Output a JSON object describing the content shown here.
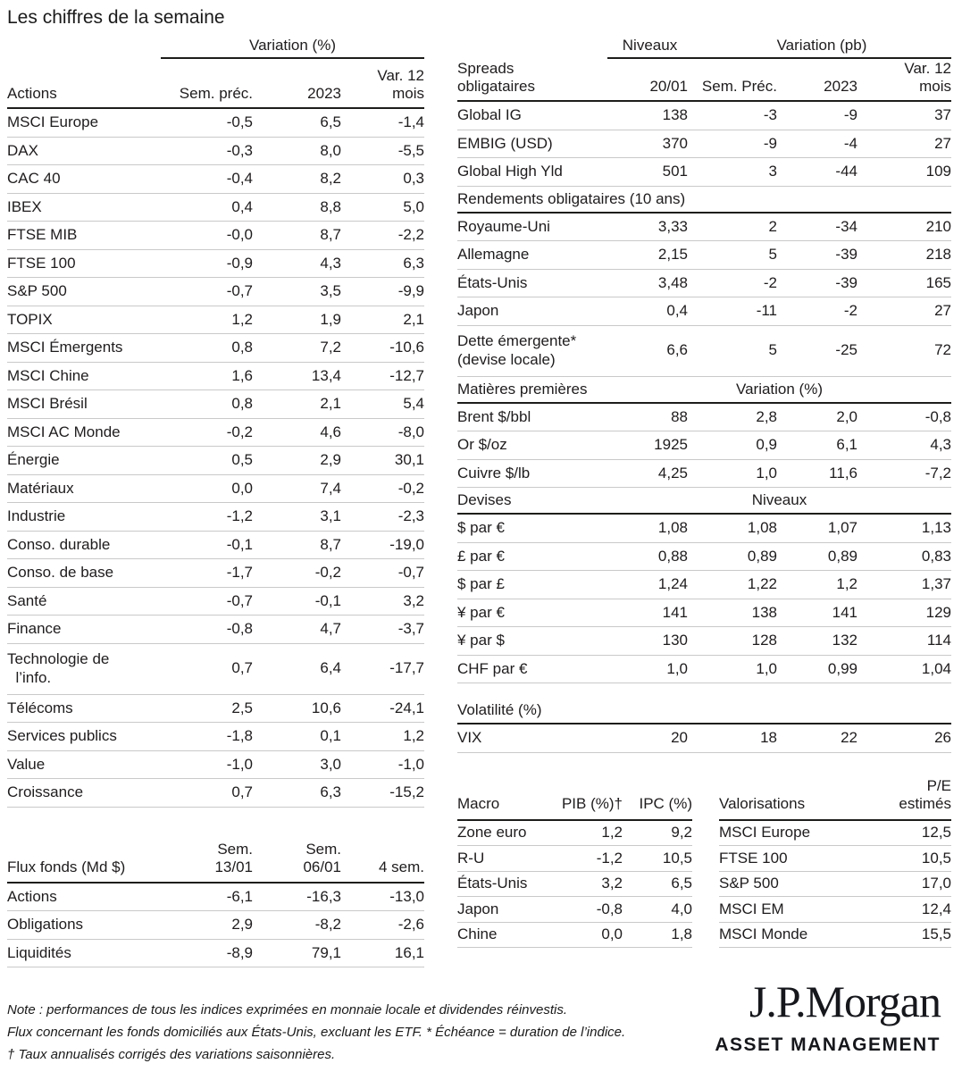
{
  "page": {
    "title": "Les chiffres de la semaine"
  },
  "actions_table": {
    "group_header": "Variation (%)",
    "col_headers": {
      "label": "Actions",
      "c1": "Sem. préc.",
      "c2": "2023",
      "c3": "Var. 12\nmois"
    },
    "rows": [
      {
        "label": "MSCI Europe",
        "c1": "-0,5",
        "c2": "6,5",
        "c3": "-1,4"
      },
      {
        "label": "DAX",
        "c1": "-0,3",
        "c2": "8,0",
        "c3": "-5,5"
      },
      {
        "label": "CAC 40",
        "c1": "-0,4",
        "c2": "8,2",
        "c3": "0,3"
      },
      {
        "label": "IBEX",
        "c1": "0,4",
        "c2": "8,8",
        "c3": "5,0"
      },
      {
        "label": "FTSE MIB",
        "c1": "-0,0",
        "c2": "8,7",
        "c3": "-2,2"
      },
      {
        "label": "FTSE 100",
        "c1": "-0,9",
        "c2": "4,3",
        "c3": "6,3"
      },
      {
        "label": "S&P 500",
        "c1": "-0,7",
        "c2": "3,5",
        "c3": "-9,9"
      },
      {
        "label": "TOPIX",
        "c1": "1,2",
        "c2": "1,9",
        "c3": "2,1"
      },
      {
        "label": "MSCI Émergents",
        "c1": "0,8",
        "c2": "7,2",
        "c3": "-10,6"
      },
      {
        "label": "MSCI Chine",
        "c1": "1,6",
        "c2": "13,4",
        "c3": "-12,7"
      },
      {
        "label": "MSCI Brésil",
        "c1": "0,8",
        "c2": "2,1",
        "c3": "5,4"
      },
      {
        "label": "MSCI AC Monde",
        "c1": "-0,2",
        "c2": "4,6",
        "c3": "-8,0"
      },
      {
        "label": "Énergie",
        "c1": "0,5",
        "c2": "2,9",
        "c3": "30,1"
      },
      {
        "label": "Matériaux",
        "c1": "0,0",
        "c2": "7,4",
        "c3": "-0,2"
      },
      {
        "label": "Industrie",
        "c1": "-1,2",
        "c2": "3,1",
        "c3": "-2,3"
      },
      {
        "label": "Conso. durable",
        "c1": "-0,1",
        "c2": "8,7",
        "c3": "-19,0"
      },
      {
        "label": "Conso. de base",
        "c1": "-1,7",
        "c2": "-0,2",
        "c3": "-0,7"
      },
      {
        "label": "Santé",
        "c1": "-0,7",
        "c2": "-0,1",
        "c3": "3,2"
      },
      {
        "label": "Finance",
        "c1": "-0,8",
        "c2": "4,7",
        "c3": "-3,7"
      },
      {
        "label": "Technologie de\n  l’info.",
        "c1": "0,7",
        "c2": "6,4",
        "c3": "-17,7",
        "row_class": "tall"
      },
      {
        "label": "Télécoms",
        "c1": "2,5",
        "c2": "10,6",
        "c3": "-24,1"
      },
      {
        "label": "Services publics",
        "c1": "-1,8",
        "c2": "0,1",
        "c3": "1,2"
      },
      {
        "label": "Value",
        "c1": "-1,0",
        "c2": "3,0",
        "c3": "-1,0"
      },
      {
        "label": "Croissance",
        "c1": "0,7",
        "c2": "6,3",
        "c3": "-15,2"
      }
    ]
  },
  "flux_table": {
    "col_headers": {
      "label": "Flux fonds (Md $)",
      "c1": "Sem.\n13/01",
      "c2": "Sem.\n06/01",
      "c3": "4 sem."
    },
    "rows": [
      {
        "label": "Actions",
        "c1": "-6,1",
        "c2": "-16,3",
        "c3": "-13,0"
      },
      {
        "label": "Obligations",
        "c1": "2,9",
        "c2": "-8,2",
        "c3": "-2,6"
      },
      {
        "label": "Liquidités",
        "c1": "-8,9",
        "c2": "79,1",
        "c3": "16,1"
      }
    ]
  },
  "notes": {
    "line1": "Note : performances de tous les indices exprimées en monnaie locale et dividendes réinvestis.",
    "line2": "Flux concernant les fonds domiciliés aux États-Unis, excluant les ETF. * Échéance = duration de l’indice.",
    "line3": "† Taux annualisés corrigés des variations saisonnières."
  },
  "bonds_table": {
    "group_header_niveaux": "Niveaux",
    "group_header_variation": "Variation (pb)",
    "col_headers": {
      "label": "Spreads\nobligataires",
      "c1": "20/01",
      "c2": "Sem. Préc.",
      "c3": "2023",
      "c4": "Var. 12\nmois"
    },
    "spreads_rows": [
      {
        "label": "Global IG",
        "c1": "138",
        "c2": "-3",
        "c3": "-9",
        "c4": "37"
      },
      {
        "label": "EMBIG (USD)",
        "c1": "370",
        "c2": "-9",
        "c3": "-4",
        "c4": "27"
      },
      {
        "label": "Global High Yld",
        "c1": "501",
        "c2": "3",
        "c3": "-44",
        "c4": "109"
      }
    ],
    "rendements_header": "Rendements obligataires (10 ans)",
    "rendements_rows": [
      {
        "label": "Royaume-Uni",
        "c1": "3,33",
        "c2": "2",
        "c3": "-34",
        "c4": "210"
      },
      {
        "label": "Allemagne",
        "c1": "2,15",
        "c2": "5",
        "c3": "-39",
        "c4": "218"
      },
      {
        "label": "États-Unis",
        "c1": "3,48",
        "c2": "-2",
        "c3": "-39",
        "c4": "165"
      },
      {
        "label": "Japon",
        "c1": "0,4",
        "c2": "-11",
        "c3": "-2",
        "c4": "27"
      },
      {
        "label": "Dette émergente*\n(devise locale)",
        "c1": "6,6",
        "c2": "5",
        "c3": "-25",
        "c4": "72",
        "row_class": "tall"
      }
    ],
    "matieres_header": "Matières premières",
    "matieres_group_header": "Variation (%)",
    "matieres_rows": [
      {
        "label": "Brent $/bbl",
        "c1": "88",
        "c2": "2,8",
        "c3": "2,0",
        "c4": "-0,8"
      },
      {
        "label": "Or $/oz",
        "c1": "1925",
        "c2": "0,9",
        "c3": "6,1",
        "c4": "4,3"
      },
      {
        "label": "Cuivre $/lb",
        "c1": "4,25",
        "c2": "1,0",
        "c3": "11,6",
        "c4": "-7,2"
      }
    ],
    "devises_header": "Devises",
    "devises_group_header": "Niveaux",
    "devises_rows": [
      {
        "label": "$ par €",
        "c1": "1,08",
        "c2": "1,08",
        "c3": "1,07",
        "c4": "1,13"
      },
      {
        "label": "£ par €",
        "c1": "0,88",
        "c2": "0,89",
        "c3": "0,89",
        "c4": "0,83"
      },
      {
        "label": "$ par £",
        "c1": "1,24",
        "c2": "1,22",
        "c3": "1,2",
        "c4": "1,37"
      },
      {
        "label": "¥ par €",
        "c1": "141",
        "c2": "138",
        "c3": "141",
        "c4": "129"
      },
      {
        "label": "¥ par $",
        "c1": "130",
        "c2": "128",
        "c3": "132",
        "c4": "114"
      },
      {
        "label": "CHF par €",
        "c1": "1,0",
        "c2": "1,0",
        "c3": "0,99",
        "c4": "1,04"
      }
    ],
    "volatilite_header": "Volatilité (%)",
    "volatilite_rows": [
      {
        "label": "VIX",
        "c1": "20",
        "c2": "18",
        "c3": "22",
        "c4": "26"
      }
    ]
  },
  "macro_table": {
    "col_headers": {
      "label": "Macro",
      "c1": "PIB (%)†",
      "c2": "IPC (%)"
    },
    "rows": [
      {
        "label": "Zone euro",
        "c1": "1,2",
        "c2": "9,2"
      },
      {
        "label": "R-U",
        "c1": "-1,2",
        "c2": "10,5"
      },
      {
        "label": "États-Unis",
        "c1": "3,2",
        "c2": "6,5"
      },
      {
        "label": "Japon",
        "c1": "-0,8",
        "c2": "4,0"
      },
      {
        "label": "Chine",
        "c1": "0,0",
        "c2": "1,8"
      }
    ]
  },
  "valorisations_table": {
    "col_headers": {
      "label": "Valorisations",
      "c1": "P/E estimés"
    },
    "rows": [
      {
        "label": "MSCI Europe",
        "c1": "12,5"
      },
      {
        "label": "FTSE 100",
        "c1": "10,5"
      },
      {
        "label": "S&P 500",
        "c1": "17,0"
      },
      {
        "label": "MSCI EM",
        "c1": "12,4"
      },
      {
        "label": "MSCI Monde",
        "c1": "15,5"
      }
    ]
  },
  "logo": {
    "brand": "J.P.Morgan",
    "division": "ASSET MANAGEMENT"
  }
}
